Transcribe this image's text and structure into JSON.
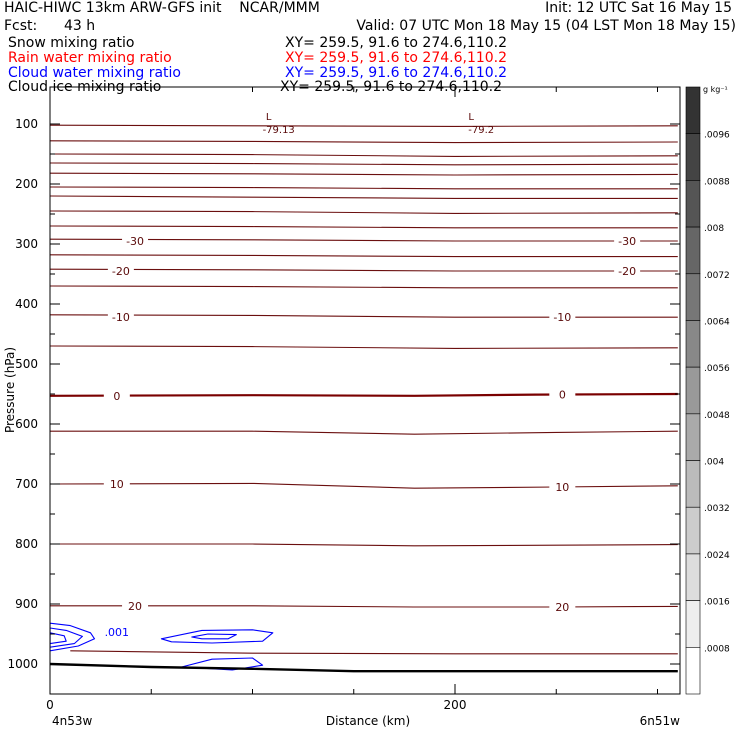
{
  "header": {
    "title_left": "HAIC-HIWC 13km ARW-GFS init    NCAR/MMM",
    "title_right": "Init: 12 UTC Sat 16 May 15",
    "fcst_label": "Fcst:",
    "fcst_value": "43 h",
    "valid": "Valid: 07 UTC Mon 18 May 15 (04 LST Mon 18 May 15)",
    "fields": [
      {
        "name": "Snow mixing ratio",
        "xy": "XY= 259.5, 91.6 to 274.6,110.2",
        "color": "#000000"
      },
      {
        "name": "Rain water mixing ratio",
        "xy": "XY= 259.5, 91.6 to 274.6,110.2",
        "color": "#ff0000"
      },
      {
        "name": "Cloud water mixing ratio",
        "xy": "XY= 259.5, 91.6 to 274.6,110.2",
        "color": "#0000ff"
      },
      {
        "name": "Cloud ice mixing ratio",
        "xy": "XY= 259.5, 91.6 to 274.6,110.2",
        "color": "#000000"
      }
    ]
  },
  "chart_data": {
    "type": "contour",
    "xlabel": "Distance (km)",
    "ylabel": "Pressure (hPa)",
    "xlim": [
      0,
      310
    ],
    "ylim": [
      1050,
      50
    ],
    "x_ticks": [
      0,
      200
    ],
    "y_ticks": [
      100,
      200,
      300,
      400,
      500,
      600,
      700,
      800,
      900,
      1000
    ],
    "x_endpoint_labels": [
      "4n53w",
      "6n51w"
    ],
    "temperature_contours": {
      "color": "#6b0f0f",
      "zero_color": "#7a0000",
      "lines": [
        {
          "value": -75,
          "p": [
            [
              0,
              102
            ],
            [
              100,
              103
            ],
            [
              200,
              104
            ],
            [
              310,
              103
            ]
          ]
        },
        {
          "value": -70,
          "p": [
            [
              0,
              128
            ],
            [
              100,
              129
            ],
            [
              200,
              131
            ],
            [
              310,
              130
            ]
          ]
        },
        {
          "value": -65,
          "p": [
            [
              0,
              150
            ],
            [
              100,
              151
            ],
            [
              200,
              154
            ],
            [
              310,
              153
            ]
          ]
        },
        {
          "value": -60,
          "p": [
            [
              0,
              165
            ],
            [
              100,
              166
            ],
            [
              200,
              168
            ],
            [
              310,
              167
            ]
          ]
        },
        {
          "value": -55,
          "p": [
            [
              0,
              182
            ],
            [
              100,
              183
            ],
            [
              200,
              185
            ],
            [
              310,
              184
            ]
          ]
        },
        {
          "value": -50,
          "p": [
            [
              0,
              205
            ],
            [
              100,
              206
            ],
            [
              200,
              208
            ],
            [
              310,
              208
            ]
          ]
        },
        {
          "value": -45,
          "p": [
            [
              0,
              220
            ],
            [
              100,
              222
            ],
            [
              200,
              224
            ],
            [
              310,
              224
            ]
          ]
        },
        {
          "value": -40,
          "p": [
            [
              0,
              245
            ],
            [
              100,
              246
            ],
            [
              200,
              249
            ],
            [
              310,
              248
            ]
          ]
        },
        {
          "value": -35,
          "p": [
            [
              0,
              270
            ],
            [
              100,
              271
            ],
            [
              200,
              273
            ],
            [
              310,
              273
            ]
          ]
        },
        {
          "value": -30,
          "p": [
            [
              0,
              292
            ],
            [
              100,
              293
            ],
            [
              200,
              295
            ],
            [
              310,
              295
            ]
          ]
        },
        {
          "value": -25,
          "p": [
            [
              0,
              318
            ],
            [
              100,
              319
            ],
            [
              200,
              321
            ],
            [
              310,
              321
            ]
          ]
        },
        {
          "value": -20,
          "p": [
            [
              0,
              342
            ],
            [
              100,
              343
            ],
            [
              200,
              345
            ],
            [
              310,
              345
            ]
          ]
        },
        {
          "value": -15,
          "p": [
            [
              0,
              370
            ],
            [
              100,
              371
            ],
            [
              200,
              373
            ],
            [
              310,
              373
            ]
          ]
        },
        {
          "value": -10,
          "p": [
            [
              0,
              418
            ],
            [
              100,
              419
            ],
            [
              200,
              422
            ],
            [
              310,
              422
            ]
          ]
        },
        {
          "value": -5,
          "p": [
            [
              0,
              470
            ],
            [
              100,
              471
            ],
            [
              200,
              474
            ],
            [
              310,
              473
            ]
          ]
        },
        {
          "value": 0,
          "p": [
            [
              0,
              553
            ],
            [
              100,
              552
            ],
            [
              180,
              553
            ],
            [
              240,
              551
            ],
            [
              310,
              550
            ]
          ]
        },
        {
          "value": 5,
          "p": [
            [
              0,
              612
            ],
            [
              100,
              612
            ],
            [
              180,
              617
            ],
            [
              250,
              614
            ],
            [
              310,
              612
            ]
          ]
        },
        {
          "value": 10,
          "p": [
            [
              0,
              700
            ],
            [
              100,
              699
            ],
            [
              180,
              707
            ],
            [
              250,
              705
            ],
            [
              310,
              703
            ]
          ]
        },
        {
          "value": 15,
          "p": [
            [
              0,
              800
            ],
            [
              100,
              800
            ],
            [
              180,
              803
            ],
            [
              250,
              802
            ],
            [
              310,
              801
            ]
          ]
        },
        {
          "value": 20,
          "p": [
            [
              0,
              903
            ],
            [
              100,
              903
            ],
            [
              180,
              905
            ],
            [
              250,
              905
            ],
            [
              310,
              904
            ]
          ]
        },
        {
          "value": 25,
          "p": [
            [
              10,
              978
            ],
            [
              100,
              982
            ],
            [
              200,
              983
            ],
            [
              310,
              983
            ]
          ]
        }
      ],
      "labels": [
        {
          "text": "-30",
          "x": 42,
          "p": 295
        },
        {
          "text": "-30",
          "x": 285,
          "p": 295
        },
        {
          "text": "-20",
          "x": 35,
          "p": 345
        },
        {
          "text": "-20",
          "x": 285,
          "p": 345
        },
        {
          "text": "-10",
          "x": 35,
          "p": 422
        },
        {
          "text": "-10",
          "x": 253,
          "p": 422
        },
        {
          "text": "0",
          "x": 33,
          "p": 553
        },
        {
          "text": "0",
          "x": 253,
          "p": 551
        },
        {
          "text": "10",
          "x": 33,
          "p": 700
        },
        {
          "text": "10",
          "x": 253,
          "p": 705
        },
        {
          "text": "20",
          "x": 42,
          "p": 903
        },
        {
          "text": "20",
          "x": 253,
          "p": 905
        }
      ],
      "lows": [
        {
          "mark": "L",
          "value": "-79.13",
          "x": 108,
          "p": 100
        },
        {
          "mark": "L",
          "value": "-79.2",
          "x": 208,
          "p": 100
        }
      ]
    },
    "cloud_water_contours": {
      "color": "#0000ff",
      "label": {
        "text": ".001",
        "x": 33,
        "p": 947
      },
      "rings": [
        [
          [
            0,
            932
          ],
          [
            10,
            936
          ],
          [
            20,
            948
          ],
          [
            22,
            958
          ],
          [
            14,
            970
          ],
          [
            0,
            978
          ]
        ],
        [
          [
            0,
            940
          ],
          [
            8,
            944
          ],
          [
            16,
            954
          ],
          [
            12,
            966
          ],
          [
            0,
            972
          ]
        ],
        [
          [
            0,
            948
          ],
          [
            7,
            953
          ],
          [
            8,
            962
          ],
          [
            0,
            966
          ]
        ],
        [
          [
            55,
            958
          ],
          [
            75,
            944
          ],
          [
            100,
            943
          ],
          [
            110,
            948
          ],
          [
            105,
            962
          ],
          [
            80,
            965
          ],
          [
            60,
            963
          ]
        ],
        [
          [
            70,
            955
          ],
          [
            78,
            950
          ],
          [
            92,
            951
          ],
          [
            88,
            958
          ],
          [
            75,
            958
          ]
        ],
        [
          [
            65,
            1005
          ],
          [
            80,
            992
          ],
          [
            100,
            990
          ],
          [
            105,
            1002
          ],
          [
            90,
            1010
          ]
        ]
      ]
    },
    "terrain": {
      "color": "#000000",
      "p": [
        [
          0,
          1000
        ],
        [
          50,
          1005
        ],
        [
          100,
          1008
        ],
        [
          150,
          1012
        ],
        [
          200,
          1012
        ],
        [
          250,
          1012
        ],
        [
          310,
          1012
        ]
      ]
    },
    "colorbar": {
      "unit": "g kg⁻¹",
      "ticks": [
        ".0096",
        ".0088",
        ".008",
        ".0072",
        ".0064",
        ".0056",
        ".0048",
        ".004",
        ".0032",
        ".0024",
        ".0016",
        ".0008"
      ],
      "n_bins": 12,
      "top_color": "#333333",
      "bottom_color": "#ffffff"
    }
  }
}
